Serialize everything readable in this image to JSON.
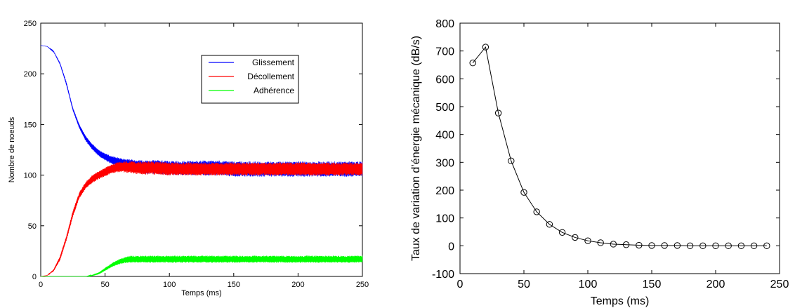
{
  "chart_data": [
    {
      "type": "line",
      "title": "",
      "xlabel": "Temps (ms)",
      "ylabel": "Nombre de noeuds",
      "xlim": [
        0,
        250
      ],
      "ylim": [
        0,
        250
      ],
      "xticks": [
        0,
        50,
        100,
        150,
        200,
        250
      ],
      "yticks": [
        0,
        50,
        100,
        150,
        200,
        250
      ],
      "grid": false,
      "legend_position": "top-right",
      "x": [
        0,
        5,
        10,
        15,
        20,
        25,
        30,
        35,
        40,
        45,
        50,
        55,
        60,
        65,
        70,
        75,
        80,
        90,
        100,
        110,
        120,
        130,
        140,
        150,
        175,
        200,
        225,
        250
      ],
      "series": [
        {
          "name": "Glissement",
          "color": "#0000ff",
          "values": [
            228,
            227,
            222,
            210,
            190,
            165,
            148,
            136,
            128,
            122,
            118,
            115,
            113,
            111,
            110,
            109,
            108,
            108,
            107,
            107,
            107,
            107,
            107,
            106,
            106,
            106,
            106,
            106
          ],
          "spread": [
            0,
            0,
            1,
            2,
            3,
            3,
            4,
            5,
            6,
            6,
            7,
            8,
            9,
            10,
            11,
            12,
            13,
            14,
            14,
            14,
            15,
            15,
            15,
            15,
            15,
            15,
            15,
            15
          ]
        },
        {
          "name": "Décollement",
          "color": "#ff0000",
          "values": [
            0,
            1,
            6,
            18,
            38,
            62,
            80,
            90,
            96,
            100,
            103,
            106,
            108,
            108,
            108,
            107,
            107,
            107,
            106,
            106,
            106,
            106,
            106,
            106,
            106,
            106,
            106,
            106
          ],
          "spread": [
            0,
            0,
            2,
            4,
            5,
            6,
            6,
            7,
            8,
            8,
            9,
            9,
            10,
            11,
            12,
            12,
            13,
            13,
            13,
            13,
            13,
            13,
            13,
            13,
            13,
            13,
            13,
            13
          ]
        },
        {
          "name": "Adhérence",
          "color": "#00ff00",
          "values": [
            0,
            0,
            0,
            0,
            0,
            0,
            0,
            0,
            1,
            3,
            7,
            11,
            14,
            16,
            17,
            17,
            17,
            17,
            17,
            17,
            17,
            17,
            17,
            17,
            17,
            17,
            17,
            17
          ],
          "spread": [
            0,
            0,
            0,
            0,
            0,
            0,
            0,
            0,
            1,
            2,
            3,
            4,
            5,
            6,
            7,
            7,
            7,
            7,
            7,
            7,
            7,
            7,
            7,
            7,
            7,
            7,
            7,
            7
          ]
        }
      ]
    },
    {
      "type": "line",
      "title": "",
      "xlabel": "Temps (ms)",
      "ylabel": "Taux de variation d’énergie mécanique (dB/s)",
      "xlim": [
        0,
        250
      ],
      "ylim": [
        -100,
        800
      ],
      "xticks": [
        0,
        50,
        100,
        150,
        200,
        250
      ],
      "yticks": [
        -100,
        0,
        100,
        200,
        300,
        400,
        500,
        600,
        700,
        800
      ],
      "grid": false,
      "marker": "circle",
      "x": [
        10,
        20,
        30,
        40,
        50,
        60,
        70,
        80,
        90,
        100,
        110,
        120,
        130,
        140,
        150,
        160,
        170,
        180,
        190,
        200,
        210,
        220,
        230,
        240
      ],
      "series": [
        {
          "name": "",
          "color": "#000000",
          "values": [
            657,
            714,
            477,
            305,
            192,
            122,
            77,
            48,
            30,
            18,
            11,
            6,
            4,
            2,
            1,
            1,
            1,
            0,
            0,
            0,
            0,
            0,
            0,
            0
          ]
        }
      ]
    }
  ]
}
